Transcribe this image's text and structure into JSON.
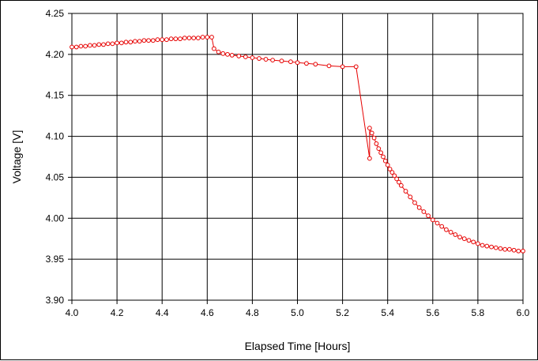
{
  "chart_data": {
    "type": "scatter",
    "title": "",
    "xlabel": "Elapsed Time [Hours]",
    "ylabel": "Voltage [V]",
    "xlim": [
      4.0,
      6.0
    ],
    "ylim": [
      3.9,
      4.25
    ],
    "x_ticks": [
      "4.0",
      "4.2",
      "4.4",
      "4.6",
      "4.8",
      "5.0",
      "5.2",
      "5.4",
      "5.6",
      "5.8",
      "6.0"
    ],
    "y_ticks": [
      "3.90",
      "3.95",
      "4.00",
      "4.05",
      "4.10",
      "4.15",
      "4.20",
      "4.25"
    ],
    "grid": true,
    "legend": false,
    "series_color": "#e60000",
    "series": [
      {
        "marker": "open-circle",
        "points": [
          [
            4.0,
            4.209
          ],
          [
            4.02,
            4.209
          ],
          [
            4.04,
            4.21
          ],
          [
            4.06,
            4.21
          ],
          [
            4.08,
            4.211
          ],
          [
            4.1,
            4.211
          ],
          [
            4.12,
            4.212
          ],
          [
            4.14,
            4.212
          ],
          [
            4.16,
            4.213
          ],
          [
            4.18,
            4.213
          ],
          [
            4.2,
            4.214
          ],
          [
            4.22,
            4.214
          ],
          [
            4.24,
            4.215
          ],
          [
            4.26,
            4.215
          ],
          [
            4.28,
            4.216
          ],
          [
            4.3,
            4.216
          ],
          [
            4.32,
            4.217
          ],
          [
            4.34,
            4.217
          ],
          [
            4.36,
            4.217
          ],
          [
            4.38,
            4.218
          ],
          [
            4.4,
            4.218
          ],
          [
            4.42,
            4.218
          ],
          [
            4.44,
            4.219
          ],
          [
            4.46,
            4.219
          ],
          [
            4.48,
            4.219
          ],
          [
            4.5,
            4.22
          ],
          [
            4.52,
            4.22
          ],
          [
            4.54,
            4.22
          ],
          [
            4.56,
            4.22
          ],
          [
            4.58,
            4.221
          ],
          [
            4.6,
            4.221
          ],
          [
            4.62,
            4.221
          ],
          [
            4.63,
            4.207
          ],
          [
            4.65,
            4.203
          ],
          [
            4.67,
            4.201
          ],
          [
            4.69,
            4.2
          ],
          [
            4.71,
            4.199
          ],
          [
            4.74,
            4.198
          ],
          [
            4.77,
            4.197
          ],
          [
            4.8,
            4.196
          ],
          [
            4.83,
            4.195
          ],
          [
            4.86,
            4.194
          ],
          [
            4.89,
            4.193
          ],
          [
            4.93,
            4.192
          ],
          [
            4.97,
            4.191
          ],
          [
            5.0,
            4.19
          ],
          [
            5.04,
            4.189
          ],
          [
            5.08,
            4.188
          ],
          [
            5.14,
            4.186
          ],
          [
            5.2,
            4.185
          ],
          [
            5.26,
            4.185
          ],
          [
            5.32,
            4.073
          ],
          [
            5.32,
            4.11
          ],
          [
            5.33,
            4.104
          ],
          [
            5.34,
            4.098
          ],
          [
            5.35,
            4.091
          ],
          [
            5.36,
            4.085
          ],
          [
            5.37,
            4.08
          ],
          [
            5.38,
            4.075
          ],
          [
            5.39,
            4.07
          ],
          [
            5.4,
            4.065
          ],
          [
            5.41,
            4.06
          ],
          [
            5.42,
            4.056
          ],
          [
            5.43,
            4.052
          ],
          [
            5.44,
            4.048
          ],
          [
            5.45,
            4.044
          ],
          [
            5.46,
            4.04
          ],
          [
            5.48,
            4.033
          ],
          [
            5.5,
            4.026
          ],
          [
            5.52,
            4.019
          ],
          [
            5.54,
            4.013
          ],
          [
            5.56,
            4.008
          ],
          [
            5.58,
            4.003
          ],
          [
            5.6,
            3.998
          ],
          [
            5.62,
            3.994
          ],
          [
            5.64,
            3.99
          ],
          [
            5.66,
            3.986
          ],
          [
            5.68,
            3.983
          ],
          [
            5.7,
            3.98
          ],
          [
            5.72,
            3.977
          ],
          [
            5.74,
            3.975
          ],
          [
            5.76,
            3.973
          ],
          [
            5.78,
            3.971
          ],
          [
            5.8,
            3.969
          ],
          [
            5.82,
            3.967
          ],
          [
            5.84,
            3.966
          ],
          [
            5.86,
            3.965
          ],
          [
            5.88,
            3.964
          ],
          [
            5.9,
            3.963
          ],
          [
            5.92,
            3.962
          ],
          [
            5.94,
            3.962
          ],
          [
            5.96,
            3.961
          ],
          [
            5.98,
            3.96
          ],
          [
            6.0,
            3.96
          ]
        ]
      }
    ]
  }
}
